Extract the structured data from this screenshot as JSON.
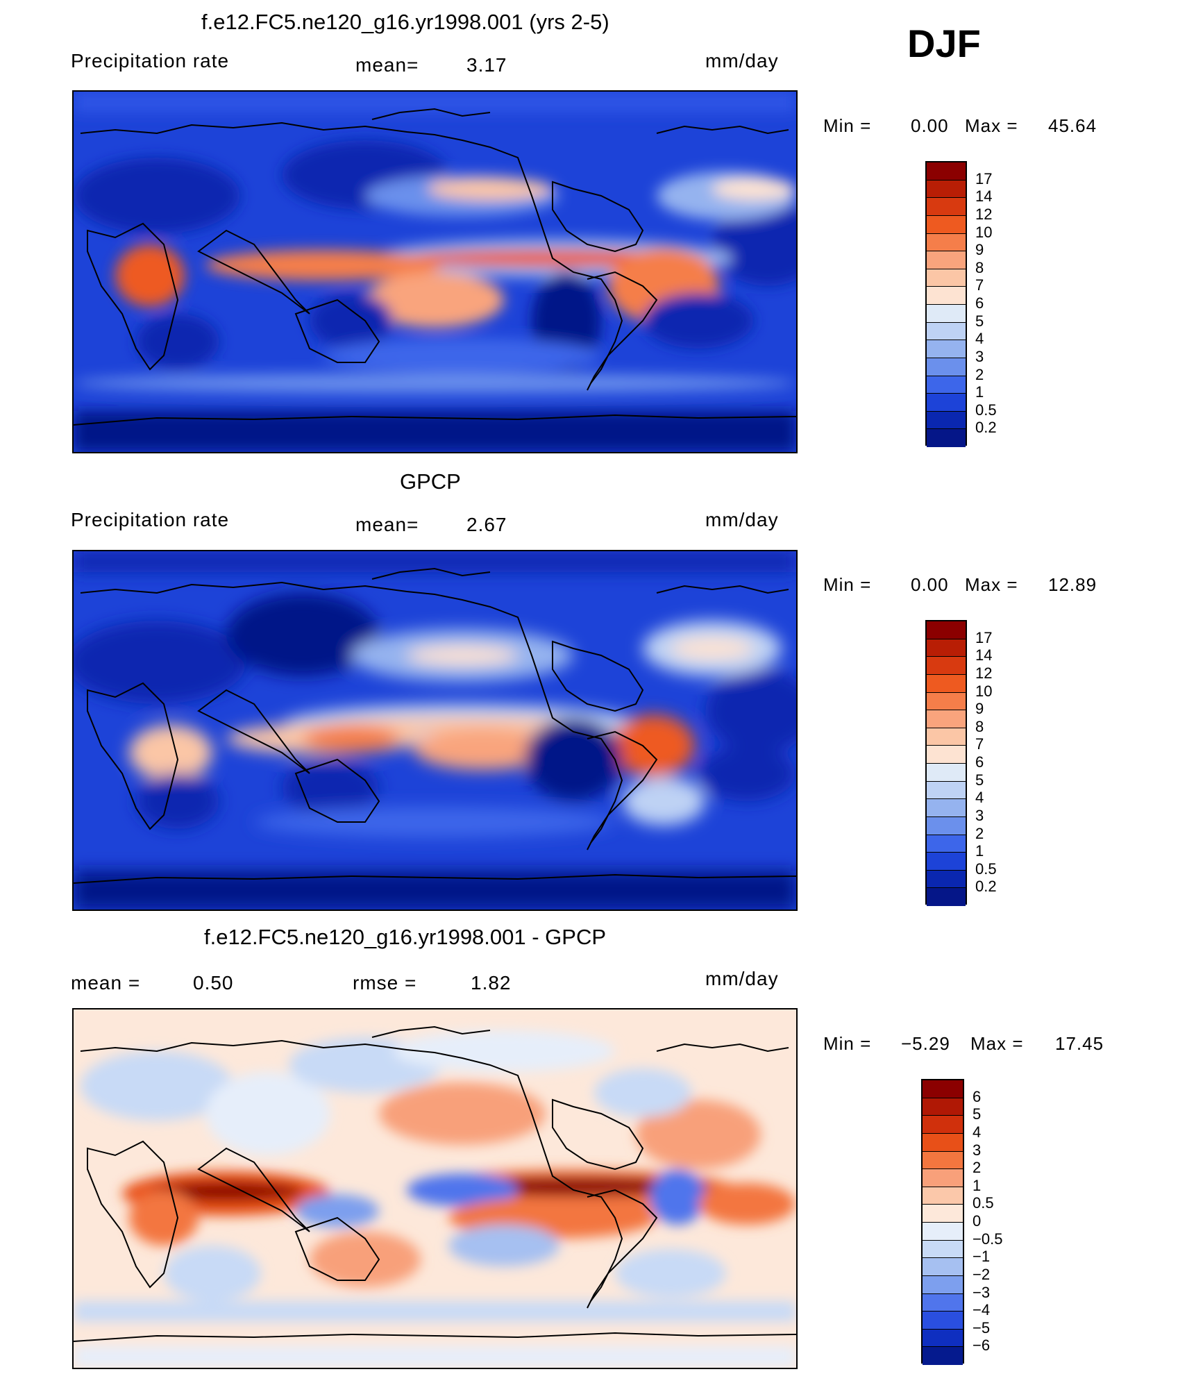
{
  "season": "DJF",
  "panels": [
    {
      "title": "f.e12.FC5.ne120_g16.yr1998.001 (yrs 2-5)",
      "left_label": "Precipitation  rate",
      "mid_label": "mean=",
      "mid_value": "3.17",
      "right_label": "",
      "right_value": "",
      "units": "mm/day",
      "min_label": "Min  =",
      "min_value": "0.00",
      "max_label": "Max  =",
      "max_value": "45.64",
      "colorbar": {
        "labels": [
          "17",
          "14",
          "12",
          "10",
          "9",
          "8",
          "7",
          "6",
          "5",
          "4",
          "3",
          "2",
          "1",
          "0.5",
          "0.2"
        ],
        "colors": [
          "#8b0000",
          "#b81e05",
          "#d83a10",
          "#ee5a20",
          "#f57e4a",
          "#f9a47d",
          "#fbc6a6",
          "#fde3d2",
          "#dfeaf7",
          "#bed2f4",
          "#95b3ef",
          "#6b90ec",
          "#3d66ea",
          "#1d43d8",
          "#0a27b0",
          "#051688"
        ]
      }
    },
    {
      "title": "GPCP",
      "left_label": "Precipitation  rate",
      "mid_label": "mean=",
      "mid_value": "2.67",
      "right_label": "",
      "right_value": "",
      "units": "mm/day",
      "min_label": "Min  =",
      "min_value": "0.00",
      "max_label": "Max  =",
      "max_value": "12.89",
      "colorbar": {
        "labels": [
          "17",
          "14",
          "12",
          "10",
          "9",
          "8",
          "7",
          "6",
          "5",
          "4",
          "3",
          "2",
          "1",
          "0.5",
          "0.2"
        ],
        "colors": [
          "#8b0000",
          "#b81e05",
          "#d83a10",
          "#ee5a20",
          "#f57e4a",
          "#f9a47d",
          "#fbc6a6",
          "#fde3d2",
          "#dfeaf7",
          "#bed2f4",
          "#95b3ef",
          "#6b90ec",
          "#3d66ea",
          "#1d43d8",
          "#0a27b0",
          "#051688"
        ]
      }
    },
    {
      "title": "f.e12.FC5.ne120_g16.yr1998.001 - GPCP",
      "left_label": "mean  =",
      "left_value": "0.50",
      "mid_label": "rmse  =",
      "mid_value": "1.82",
      "units": "mm/day",
      "min_label": "Min  =",
      "min_value": "−5.29",
      "max_label": "Max  =",
      "max_value": "17.45",
      "colorbar": {
        "labels": [
          "6",
          "5",
          "4",
          "3",
          "2",
          "1",
          "0.5",
          "0",
          "−0.5",
          "−1",
          "−2",
          "−3",
          "−4",
          "−5",
          "−6"
        ],
        "colors": [
          "#8b0000",
          "#b01805",
          "#d0300c",
          "#e85018",
          "#f3763f",
          "#f8a07a",
          "#fbc8aa",
          "#fde8da",
          "#e6eefa",
          "#c8daf6",
          "#a6c0f1",
          "#7d9fee",
          "#5075ec",
          "#2a4fe0",
          "#0f2fc0",
          "#051a8e"
        ]
      }
    }
  ]
}
